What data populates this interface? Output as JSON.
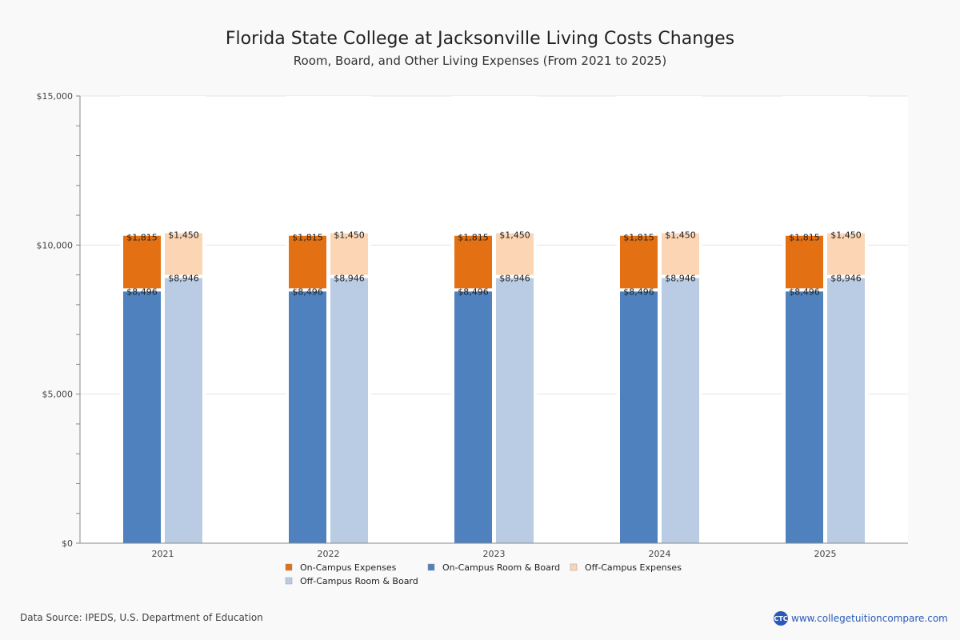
{
  "header": {
    "title": "Florida State College at Jacksonville Living Costs Changes",
    "subtitle": "Room, Board, and Other Living Expenses (From 2021 to 2025)"
  },
  "footer": {
    "source": "Data Source: IPEDS, U.S. Department of Education",
    "brand_logo": "CTC",
    "brand_url": "www.collegetuitioncompare.com"
  },
  "chart_data": {
    "type": "bar",
    "stacked": true,
    "title": "Florida State College at Jacksonville Living Costs Changes",
    "subtitle": "Room, Board, and Other Living Expenses (From 2021 to 2025)",
    "xlabel": "",
    "ylabel": "",
    "ylim": [
      0,
      15000
    ],
    "yticks": [
      0,
      5000,
      10000,
      15000
    ],
    "ytick_labels": [
      "$0",
      "$5,000",
      "$10,000",
      "$15,000"
    ],
    "grid": true,
    "legend_position": "bottom",
    "categories": [
      "2021",
      "2022",
      "2023",
      "2024",
      "2025"
    ],
    "series": [
      {
        "name": "On-Campus Expenses",
        "stack": "on",
        "color": "#e37012",
        "values": [
          1815,
          1815,
          1815,
          1815,
          1815
        ],
        "labels": [
          "$1,815",
          "$1,815",
          "$1,815",
          "$1,815",
          "$1,815"
        ]
      },
      {
        "name": "On-Campus Room & Board",
        "stack": "on",
        "color": "#4e81bd",
        "values": [
          8496,
          8496,
          8496,
          8496,
          8496
        ],
        "labels": [
          "$8,496",
          "$8,496",
          "$8,496",
          "$8,496",
          "$8,496"
        ]
      },
      {
        "name": "Off-Campus Expenses",
        "stack": "off",
        "color": "#fbd5b4",
        "values": [
          1450,
          1450,
          1450,
          1450,
          1450
        ],
        "labels": [
          "$1,450",
          "$1,450",
          "$1,450",
          "$1,450",
          "$1,450"
        ]
      },
      {
        "name": "Off-Campus Room & Board",
        "stack": "off",
        "color": "#b9cce4",
        "values": [
          8946,
          8946,
          8946,
          8946,
          8946
        ],
        "labels": [
          "$8,946",
          "$8,946",
          "$8,946",
          "$8,946",
          "$8,946"
        ]
      }
    ]
  }
}
